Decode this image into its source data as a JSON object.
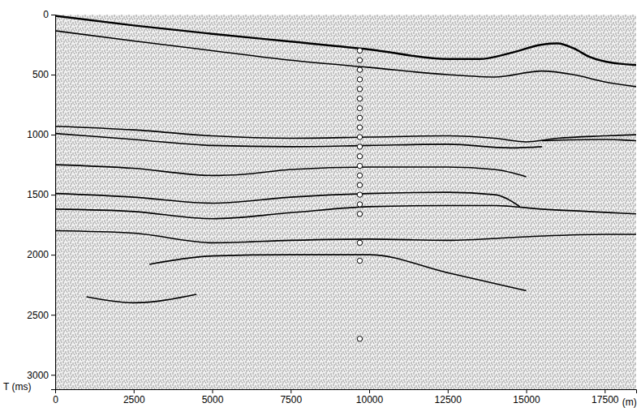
{
  "chart_data": {
    "type": "line",
    "x_label": "(m)",
    "y_label": "T (ms)",
    "xlim": [
      0,
      18500
    ],
    "ylim": [
      0,
      3120
    ],
    "xticks": [
      0,
      2500,
      5000,
      7500,
      10000,
      12500,
      15000,
      17500
    ],
    "yticks": [
      0,
      500,
      1000,
      1500,
      2000,
      2500,
      3000
    ],
    "grid": false,
    "series": [
      {
        "color": "#000000",
        "x": [
          0,
          2500,
          5000,
          7500,
          10000,
          12500,
          13500,
          14500,
          15500,
          16000,
          16500,
          17000,
          17500,
          18500
        ],
        "values": [
          10,
          90,
          160,
          225,
          290,
          370,
          370,
          320,
          250,
          240,
          280,
          350,
          390,
          420
        ]
      },
      {
        "color": "#000000",
        "x": [
          0,
          2500,
          5000,
          7500,
          10000,
          12500,
          14000,
          15500,
          16500,
          17500,
          18500
        ],
        "values": [
          135,
          220,
          300,
          380,
          440,
          500,
          520,
          470,
          500,
          560,
          600
        ]
      },
      {
        "color": "#000000",
        "x": [
          0,
          2500,
          5000,
          7500,
          10000,
          12500,
          14000,
          15000,
          16000,
          17500,
          18500
        ],
        "values": [
          930,
          960,
          1010,
          1030,
          1020,
          1010,
          1030,
          1060,
          1030,
          1010,
          1000
        ]
      },
      {
        "color": "#000000",
        "x": [
          0,
          2500,
          5000,
          7500,
          10000,
          12500,
          14500,
          15500
        ],
        "values": [
          990,
          1040,
          1090,
          1100,
          1090,
          1080,
          1110,
          1100
        ]
      },
      {
        "color": "#000000",
        "x": [
          0,
          2500,
          5000,
          6000,
          7500,
          10000,
          12500,
          14000,
          15000
        ],
        "values": [
          1250,
          1280,
          1340,
          1330,
          1290,
          1270,
          1270,
          1290,
          1350
        ]
      },
      {
        "color": "#000000",
        "x": [
          0,
          2500,
          5000,
          7500,
          10000,
          12500,
          14000,
          14800
        ],
        "values": [
          1490,
          1520,
          1570,
          1520,
          1490,
          1480,
          1500,
          1600
        ]
      },
      {
        "color": "#000000",
        "x": [
          0,
          2500,
          5000,
          7500,
          10000,
          12500,
          14000,
          15500,
          17000,
          18500
        ],
        "values": [
          1620,
          1640,
          1700,
          1650,
          1600,
          1590,
          1590,
          1620,
          1640,
          1660
        ]
      },
      {
        "color": "#000000",
        "x": [
          0,
          2500,
          5000,
          7500,
          10000,
          12500,
          15000,
          17500,
          18500
        ],
        "values": [
          1800,
          1820,
          1900,
          1880,
          1870,
          1880,
          1850,
          1830,
          1830
        ]
      },
      {
        "color": "#000000",
        "x": [
          3000,
          5000,
          7500,
          10000,
          12500,
          15000
        ],
        "values": [
          2080,
          2010,
          2000,
          2000,
          2150,
          2300
        ]
      },
      {
        "color": "#000000",
        "x": [
          1000,
          2500,
          4500
        ],
        "values": [
          2350,
          2400,
          2330
        ]
      },
      {
        "color": "#000000",
        "x": [
          15500,
          17500,
          18500
        ],
        "values": [
          1050,
          1040,
          1050
        ]
      },
      {
        "type": "scatter",
        "marker": "circle",
        "color": "#000000",
        "x": [
          9700,
          9700,
          9700,
          9700,
          9700,
          9700,
          9700,
          9700,
          9700,
          9700,
          9700,
          9700,
          9700,
          9700,
          9700,
          9700,
          9700,
          9700,
          9700,
          9700,
          9700
        ],
        "values": [
          300,
          380,
          460,
          540,
          620,
          700,
          780,
          860,
          940,
          1020,
          1100,
          1180,
          1260,
          1340,
          1420,
          1500,
          1580,
          1660,
          1900,
          2050,
          2700
        ]
      }
    ]
  }
}
